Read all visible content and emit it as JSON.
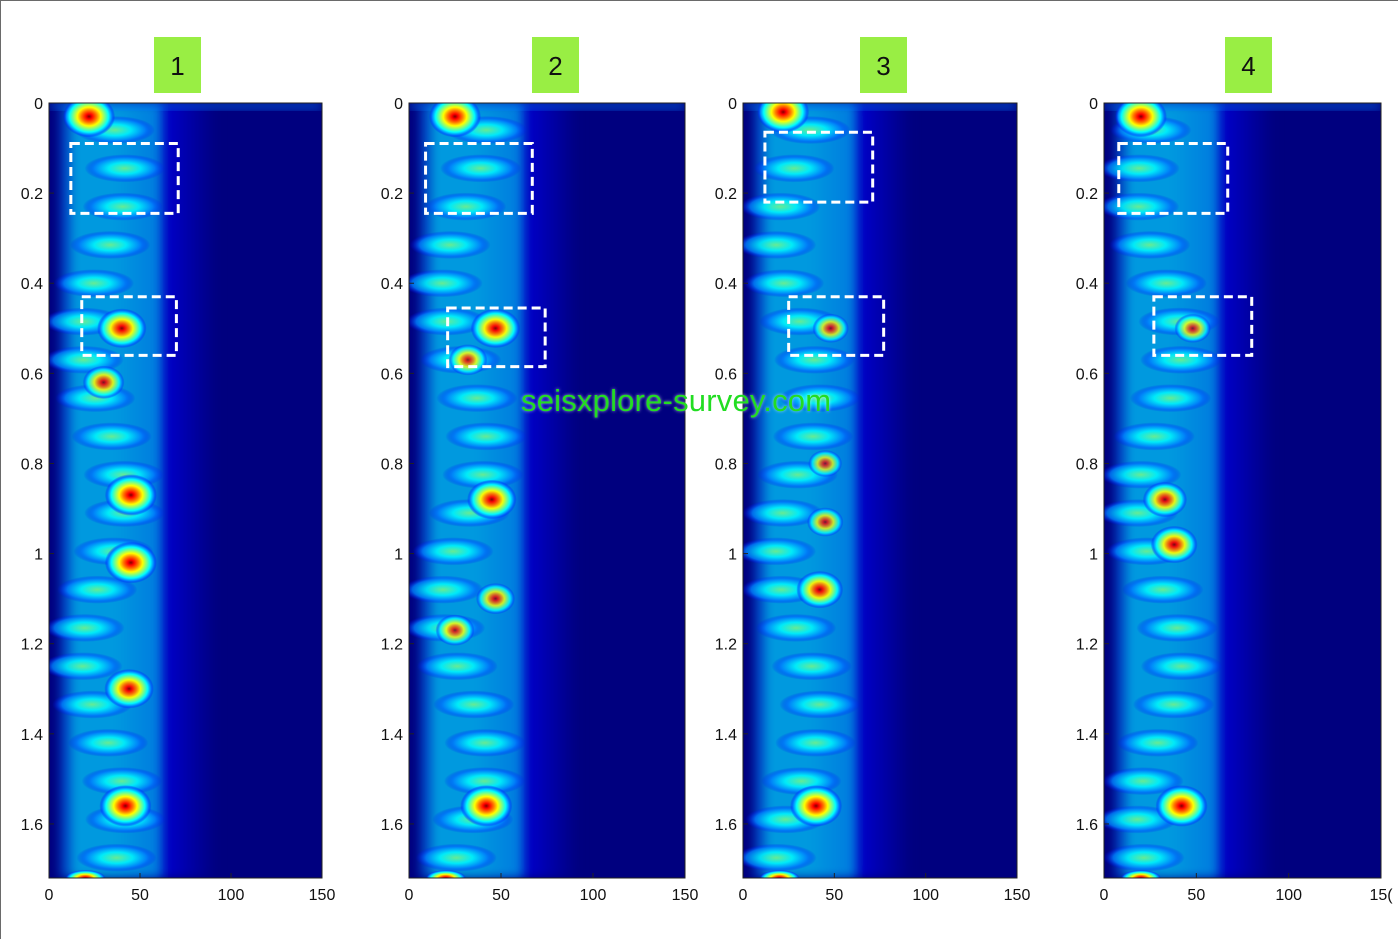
{
  "chart_data": [
    {
      "type": "heatmap",
      "panel_label": "1",
      "x_ticks": [
        "0",
        "50",
        "100",
        "150"
      ],
      "y_ticks": [
        "0",
        "0.2",
        "0.4",
        "0.6",
        "0.8",
        "1",
        "1.2",
        "1.4",
        "1.6"
      ],
      "xlim": [
        0,
        150
      ],
      "ylim": [
        0,
        1.72
      ],
      "y_reversed": true,
      "highlight_boxes": [
        {
          "x": [
            12,
            71
          ],
          "y": [
            0.09,
            0.245
          ]
        },
        {
          "x": [
            18,
            70
          ],
          "y": [
            0.43,
            0.56
          ]
        }
      ],
      "hotspots": [
        {
          "x": 22,
          "y": 0.03,
          "level": 1.0
        },
        {
          "x": 40,
          "y": 0.5,
          "level": 0.95
        },
        {
          "x": 30,
          "y": 0.62,
          "level": 0.8
        },
        {
          "x": 45,
          "y": 0.87,
          "level": 1.0
        },
        {
          "x": 45,
          "y": 1.02,
          "level": 1.0
        },
        {
          "x": 44,
          "y": 1.3,
          "level": 0.95
        },
        {
          "x": 42,
          "y": 1.56,
          "level": 1.0
        }
      ]
    },
    {
      "type": "heatmap",
      "panel_label": "2",
      "x_ticks": [
        "0",
        "50",
        "100",
        "150"
      ],
      "y_ticks": [
        "0",
        "0.2",
        "0.4",
        "0.6",
        "0.8",
        "1",
        "1.2",
        "1.4",
        "1.6"
      ],
      "xlim": [
        0,
        150
      ],
      "ylim": [
        0,
        1.72
      ],
      "y_reversed": true,
      "highlight_boxes": [
        {
          "x": [
            9,
            67
          ],
          "y": [
            0.09,
            0.245
          ]
        },
        {
          "x": [
            21,
            74
          ],
          "y": [
            0.455,
            0.585
          ]
        }
      ],
      "hotspots": [
        {
          "x": 25,
          "y": 0.03,
          "level": 1.0
        },
        {
          "x": 47,
          "y": 0.5,
          "level": 0.95
        },
        {
          "x": 32,
          "y": 0.57,
          "level": 0.75
        },
        {
          "x": 45,
          "y": 0.88,
          "level": 0.95
        },
        {
          "x": 47,
          "y": 1.1,
          "level": 0.75
        },
        {
          "x": 25,
          "y": 1.17,
          "level": 0.75
        },
        {
          "x": 42,
          "y": 1.56,
          "level": 1.0
        }
      ]
    },
    {
      "type": "heatmap",
      "panel_label": "3",
      "x_ticks": [
        "0",
        "50",
        "100",
        "150"
      ],
      "y_ticks": [
        "0",
        "0.2",
        "0.4",
        "0.6",
        "0.8",
        "1",
        "1.2",
        "1.4",
        "1.6"
      ],
      "xlim": [
        0,
        150
      ],
      "ylim": [
        0,
        1.72
      ],
      "y_reversed": true,
      "highlight_boxes": [
        {
          "x": [
            12,
            71
          ],
          "y": [
            0.065,
            0.22
          ]
        },
        {
          "x": [
            25,
            77
          ],
          "y": [
            0.43,
            0.56
          ]
        }
      ],
      "hotspots": [
        {
          "x": 22,
          "y": 0.02,
          "level": 1.0
        },
        {
          "x": 48,
          "y": 0.5,
          "level": 0.7
        },
        {
          "x": 45,
          "y": 0.8,
          "level": 0.65
        },
        {
          "x": 45,
          "y": 0.93,
          "level": 0.7
        },
        {
          "x": 42,
          "y": 1.08,
          "level": 0.9
        },
        {
          "x": 40,
          "y": 1.56,
          "level": 1.0
        }
      ]
    },
    {
      "type": "heatmap",
      "panel_label": "4",
      "x_ticks": [
        "0",
        "50",
        "100",
        "15("
      ],
      "y_ticks": [
        "0",
        "0.2",
        "0.4",
        "0.6",
        "0.8",
        "1",
        "1.2",
        "1.4",
        "1.6"
      ],
      "xlim": [
        0,
        150
      ],
      "ylim": [
        0,
        1.72
      ],
      "y_reversed": true,
      "highlight_boxes": [
        {
          "x": [
            8,
            67
          ],
          "y": [
            0.09,
            0.245
          ]
        },
        {
          "x": [
            27,
            80
          ],
          "y": [
            0.43,
            0.56
          ]
        }
      ],
      "hotspots": [
        {
          "x": 20,
          "y": 0.03,
          "level": 1.0
        },
        {
          "x": 48,
          "y": 0.5,
          "level": 0.7
        },
        {
          "x": 33,
          "y": 0.88,
          "level": 0.85
        },
        {
          "x": 38,
          "y": 0.98,
          "level": 0.9
        },
        {
          "x": 42,
          "y": 1.56,
          "level": 1.0
        }
      ]
    }
  ],
  "badge_color": "#99ee44",
  "colormap": [
    "#00007f",
    "#0000ff",
    "#0080ff",
    "#00ffff",
    "#80ff80",
    "#ffff00",
    "#ff8000",
    "#ff0000",
    "#800000"
  ],
  "watermark": "seisxplore-survey.com"
}
